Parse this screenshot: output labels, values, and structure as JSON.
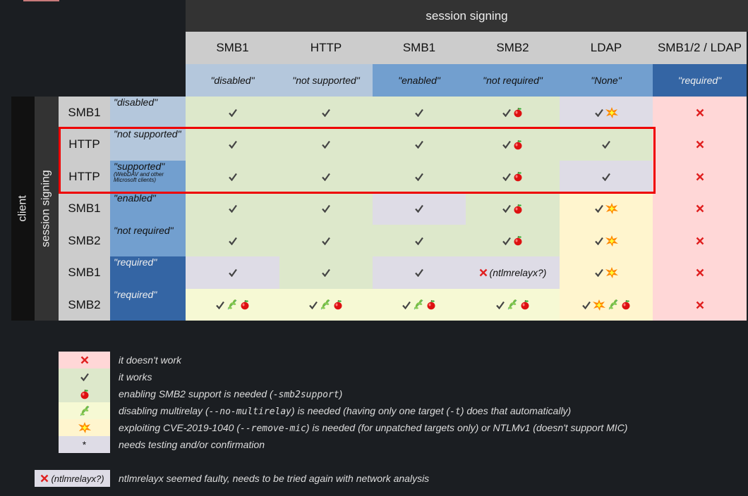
{
  "header": {
    "title": "session signing"
  },
  "client_label": "client",
  "session_signing_label": "session signing",
  "colors": {
    "green": "#dde8cb",
    "lavender": "#dedce6",
    "pink": "#ffd7d7",
    "yellow": "#fff5ce",
    "lightyellow": "#f6f9d4",
    "light_blue": "#b4c7dc",
    "mid_blue": "#729fcf",
    "dark_blue": "#3465a4",
    "highlight": "#e00000"
  },
  "columns": [
    {
      "protocol": "SMB1",
      "value": "\"disabled\"",
      "shade": "light_blue"
    },
    {
      "protocol": "HTTP",
      "value": "\"not supported\"",
      "shade": "light_blue"
    },
    {
      "protocol": "SMB1",
      "value": "\"enabled\"",
      "shade": "mid_blue"
    },
    {
      "protocol": "SMB2",
      "value": "\"not required\"",
      "shade": "mid_blue"
    },
    {
      "protocol": "LDAP",
      "value": "\"None\"",
      "shade": "mid_blue"
    },
    {
      "protocol": "SMB1/2 / LDAP",
      "value": "\"required\"",
      "shade": "dark_blue"
    }
  ],
  "rows": [
    {
      "protocol": "SMB1",
      "value": "\"disabled\"",
      "shade": "light_blue",
      "cells": [
        {
          "bg": "green",
          "icons": [
            "check"
          ]
        },
        {
          "bg": "green",
          "icons": [
            "check"
          ]
        },
        {
          "bg": "green",
          "icons": [
            "check"
          ]
        },
        {
          "bg": "green",
          "icons": [
            "check",
            "apple"
          ]
        },
        {
          "bg": "lavender",
          "icons": [
            "check",
            "boom"
          ]
        },
        {
          "bg": "pink",
          "icons": [
            "cross"
          ]
        }
      ]
    },
    {
      "protocol": "HTTP",
      "value": "\"not supported\"",
      "shade": "light_blue",
      "cells": [
        {
          "bg": "green",
          "icons": [
            "check"
          ]
        },
        {
          "bg": "green",
          "icons": [
            "check"
          ]
        },
        {
          "bg": "green",
          "icons": [
            "check"
          ]
        },
        {
          "bg": "green",
          "icons": [
            "check",
            "apple"
          ]
        },
        {
          "bg": "green",
          "icons": [
            "check"
          ]
        },
        {
          "bg": "pink",
          "icons": [
            "cross"
          ]
        }
      ]
    },
    {
      "protocol": "HTTP",
      "value": "\"supported\"",
      "sub": "(WebDAV and other Microsoft clients)",
      "shade": "mid_blue",
      "cells": [
        {
          "bg": "green",
          "icons": [
            "check"
          ]
        },
        {
          "bg": "green",
          "icons": [
            "check"
          ]
        },
        {
          "bg": "green",
          "icons": [
            "check"
          ]
        },
        {
          "bg": "green",
          "icons": [
            "check",
            "apple"
          ]
        },
        {
          "bg": "lavender",
          "icons": [
            "check"
          ]
        },
        {
          "bg": "pink",
          "icons": [
            "cross"
          ]
        }
      ]
    },
    {
      "protocol": "SMB1",
      "value": "\"enabled\"",
      "shade": "mid_blue",
      "cells": [
        {
          "bg": "green",
          "icons": [
            "check"
          ]
        },
        {
          "bg": "green",
          "icons": [
            "check"
          ]
        },
        {
          "bg": "lavender",
          "icons": [
            "check"
          ]
        },
        {
          "bg": "green",
          "icons": [
            "check",
            "apple"
          ]
        },
        {
          "bg": "yellow",
          "icons": [
            "check",
            "boom"
          ]
        },
        {
          "bg": "pink",
          "icons": [
            "cross"
          ]
        }
      ]
    },
    {
      "protocol": "SMB2",
      "value": "\"not required\"",
      "shade": "mid_blue",
      "cells": [
        {
          "bg": "green",
          "icons": [
            "check"
          ]
        },
        {
          "bg": "green",
          "icons": [
            "check"
          ]
        },
        {
          "bg": "green",
          "icons": [
            "check"
          ]
        },
        {
          "bg": "green",
          "icons": [
            "check",
            "apple"
          ]
        },
        {
          "bg": "yellow",
          "icons": [
            "check",
            "boom"
          ]
        },
        {
          "bg": "pink",
          "icons": [
            "cross"
          ]
        }
      ]
    },
    {
      "protocol": "SMB1",
      "value": "\"required\"",
      "shade": "dark_blue",
      "cells": [
        {
          "bg": "lavender",
          "icons": [
            "check"
          ]
        },
        {
          "bg": "green",
          "icons": [
            "check"
          ]
        },
        {
          "bg": "lavender",
          "icons": [
            "check"
          ]
        },
        {
          "bg": "lavender",
          "icons": [
            "cross"
          ],
          "text": "(ntlmrelayx?)"
        },
        {
          "bg": "yellow",
          "icons": [
            "check",
            "boom"
          ]
        },
        {
          "bg": "pink",
          "icons": [
            "cross"
          ]
        }
      ]
    },
    {
      "protocol": "SMB2",
      "value": "\"required\"",
      "shade": "dark_blue",
      "cells": [
        {
          "bg": "lightyellow",
          "icons": [
            "check",
            "herb",
            "apple"
          ]
        },
        {
          "bg": "lightyellow",
          "icons": [
            "check",
            "herb",
            "apple"
          ]
        },
        {
          "bg": "lightyellow",
          "icons": [
            "check",
            "herb",
            "apple"
          ]
        },
        {
          "bg": "lightyellow",
          "icons": [
            "check",
            "herb",
            "apple"
          ]
        },
        {
          "bg": "yellow",
          "icons": [
            "check",
            "boom",
            "herb",
            "apple"
          ]
        },
        {
          "bg": "pink",
          "icons": [
            "cross"
          ]
        }
      ]
    }
  ],
  "legend": [
    {
      "bg": "pink",
      "icon": "cross",
      "parts": [
        {
          "t": "it doesn't work"
        }
      ]
    },
    {
      "bg": "green",
      "icon": "check",
      "parts": [
        {
          "t": "it works"
        }
      ]
    },
    {
      "bg": "green",
      "icon": "apple",
      "parts": [
        {
          "t": "enabling SMB2 support is needed ("
        },
        {
          "t": "-smb2support",
          "code": true
        },
        {
          "t": ")"
        }
      ]
    },
    {
      "bg": "lightyellow",
      "icon": "herb",
      "parts": [
        {
          "t": "disabling multirelay ("
        },
        {
          "t": "--no-multirelay",
          "code": true
        },
        {
          "t": ") is needed (having only one target ("
        },
        {
          "t": "-t",
          "code": true
        },
        {
          "t": ") does that automatically)"
        }
      ]
    },
    {
      "bg": "yellow",
      "icon": "boom",
      "parts": [
        {
          "t": "exploiting CVE-2019-1040 ("
        },
        {
          "t": "--remove-mic",
          "code": true
        },
        {
          "t": ") is needed (for unpatched targets only) or NTLMv1 (doesn't support MIC)"
        }
      ]
    },
    {
      "bg": "lavender",
      "icon": "asterisk",
      "symbol": "*",
      "parts": [
        {
          "t": "needs testing and/or confirmation"
        }
      ]
    }
  ],
  "note": {
    "swatch_text": "(ntlmrelayx?)",
    "text": "ntlmrelayx seemed faulty, needs to be tried again with network analysis"
  }
}
